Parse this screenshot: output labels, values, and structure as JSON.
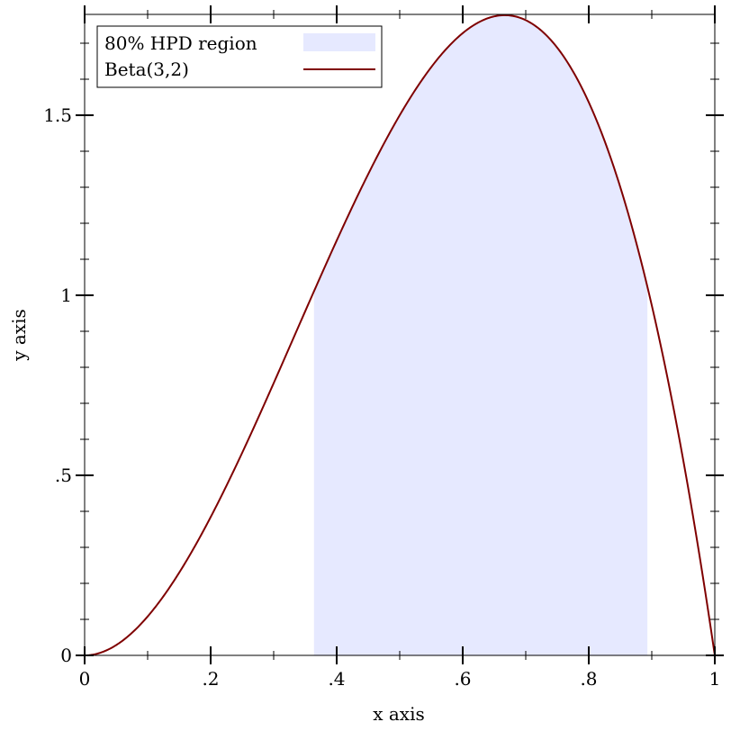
{
  "chart_data": {
    "type": "line",
    "xlabel": "x axis",
    "ylabel": "y axis",
    "xlim": [
      0,
      1
    ],
    "ylim": [
      0,
      1.78
    ],
    "x_ticks": [
      {
        "value": 0,
        "label": "0"
      },
      {
        "value": 0.2,
        "label": ".2"
      },
      {
        "value": 0.4,
        "label": ".4"
      },
      {
        "value": 0.6,
        "label": ".6"
      },
      {
        "value": 0.8,
        "label": ".8"
      },
      {
        "value": 1,
        "label": "1"
      }
    ],
    "y_ticks": [
      {
        "value": 0,
        "label": "0"
      },
      {
        "value": 0.5,
        "label": ".5"
      },
      {
        "value": 1,
        "label": "1"
      },
      {
        "value": 1.5,
        "label": "1.5"
      }
    ],
    "x_minor_ticks": [
      0.1,
      0.3,
      0.5,
      0.7,
      0.9
    ],
    "y_minor_ticks": [
      0.1,
      0.2,
      0.3,
      0.4,
      0.6,
      0.7,
      0.8,
      0.9,
      1.1,
      1.2,
      1.3,
      1.4,
      1.6,
      1.7
    ],
    "grid": false,
    "legend_position": "top-left",
    "series": [
      {
        "name": "80% HPD region",
        "kind": "area",
        "color": "#e6e9ff",
        "x": [
          0.364,
          0.893
        ],
        "y": [
          1,
          1
        ]
      },
      {
        "name": "Beta(3,2)",
        "kind": "line",
        "color": "#7f0000",
        "x": [
          0,
          0.05,
          0.1,
          0.15,
          0.2,
          0.25,
          0.3,
          0.35,
          0.364,
          0.4,
          0.45,
          0.5,
          0.55,
          0.6,
          0.65,
          0.667,
          0.7,
          0.75,
          0.8,
          0.85,
          0.893,
          0.9,
          0.95,
          1
        ],
        "y": [
          0,
          0.0285,
          0.108,
          0.2295,
          0.384,
          0.5625,
          0.756,
          0.9555,
          1.011,
          1.152,
          1.3365,
          1.5,
          1.6335,
          1.728,
          1.7745,
          1.778,
          1.764,
          1.6875,
          1.536,
          1.3005,
          1.024,
          0.972,
          0.5415,
          0
        ]
      }
    ]
  }
}
